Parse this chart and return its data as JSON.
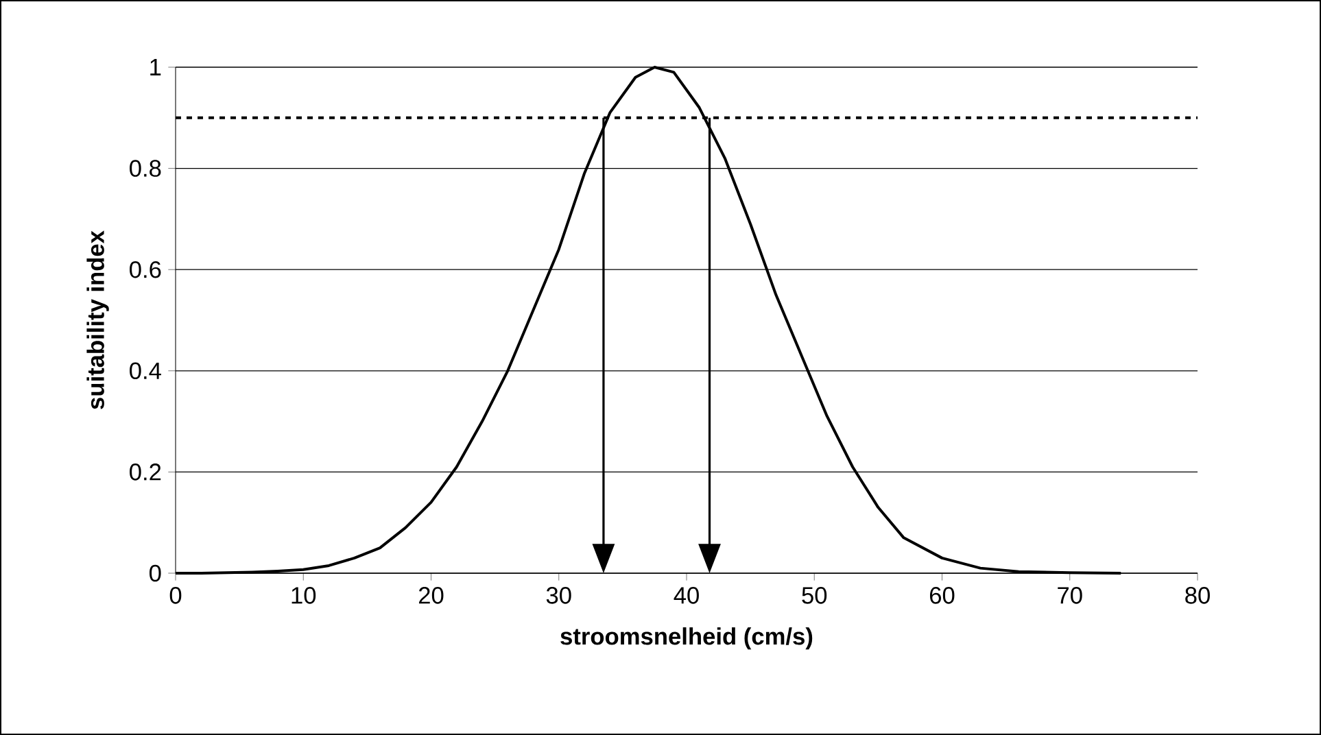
{
  "chart_data": {
    "type": "line",
    "xlabel": "stroomsnelheid (cm/s)",
    "ylabel": "suitability index",
    "x": [
      0,
      2,
      4,
      6,
      8,
      10,
      12,
      14,
      16,
      18,
      20,
      22,
      24,
      26,
      28,
      30,
      32,
      34,
      36,
      37.5,
      39,
      41,
      43,
      45,
      47,
      49,
      51,
      53,
      55,
      57,
      60,
      63,
      66,
      70,
      74
    ],
    "series": [
      {
        "color": "#000000",
        "values": [
          0,
          0,
          0.001,
          0.002,
          0.004,
          0.007,
          0.015,
          0.03,
          0.05,
          0.09,
          0.14,
          0.21,
          0.3,
          0.4,
          0.52,
          0.64,
          0.79,
          0.91,
          0.98,
          1,
          0.99,
          0.92,
          0.82,
          0.69,
          0.55,
          0.43,
          0.31,
          0.21,
          0.13,
          0.07,
          0.03,
          0.01,
          0.003,
          0.001,
          0
        ]
      }
    ],
    "xlim": [
      0,
      80
    ],
    "xticks": [
      0,
      10,
      20,
      30,
      40,
      50,
      60,
      70,
      80
    ],
    "ylim": [
      0,
      1
    ],
    "yticks": [
      0,
      0.2,
      0.4,
      0.6,
      0.8,
      1
    ],
    "grid": "y",
    "marker": "none",
    "line_style": "solid",
    "ref_lines": [
      {
        "axis": "y",
        "value": 0.9,
        "line_style": "dotted",
        "color": "#000000"
      },
      {
        "axis": "x",
        "value": 33.5,
        "line_style": "solid",
        "color": "#000000"
      },
      {
        "axis": "x",
        "value": 41.8,
        "line_style": "solid",
        "color": "#000000"
      }
    ]
  }
}
